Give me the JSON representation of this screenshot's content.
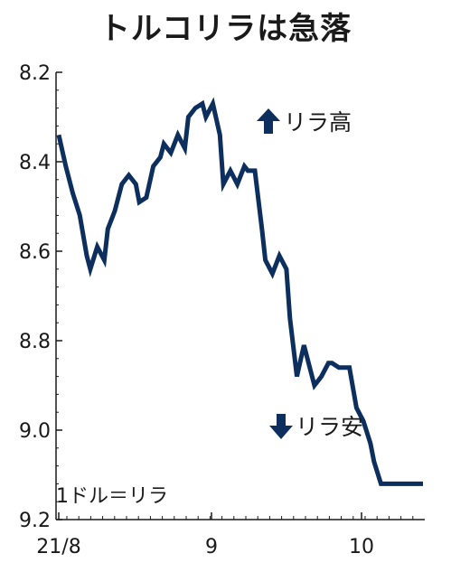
{
  "chart_data": {
    "type": "line",
    "title": "トルコリラは急落",
    "unit_label": "1ドル＝リラ",
    "y_axis": {
      "inverted": true,
      "ylim": [
        8.2,
        9.2
      ],
      "ticks": [
        "8.2",
        "8.4",
        "8.6",
        "8.8",
        "9.0",
        "9.2"
      ]
    },
    "x_axis": {
      "tick_labels": [
        "21/8",
        "9",
        "10"
      ]
    },
    "line_color": "#0d2f5e",
    "annotations": [
      {
        "text": "リラ高",
        "arrow": "up"
      },
      {
        "text": "リラ安",
        "arrow": "down"
      }
    ],
    "series": [
      {
        "x": [
          0,
          2,
          4,
          6,
          8,
          9,
          11,
          13,
          14,
          16,
          18,
          20,
          22,
          23,
          25,
          27,
          29,
          30,
          32,
          34,
          36,
          37,
          39,
          41,
          42,
          44,
          46,
          47,
          49,
          51,
          53,
          54,
          56,
          58,
          59,
          61,
          63,
          65,
          66,
          68,
          70,
          72,
          73,
          75,
          77,
          78,
          80,
          82,
          83,
          85,
          87,
          89,
          90,
          92,
          94,
          96,
          97,
          99,
          101,
          103,
          104
        ],
        "values": [
          8.34,
          8.41,
          8.47,
          8.52,
          8.61,
          8.64,
          8.59,
          8.62,
          8.55,
          8.51,
          8.45,
          8.43,
          8.45,
          8.49,
          8.48,
          8.41,
          8.39,
          8.36,
          8.38,
          8.34,
          8.37,
          8.3,
          8.28,
          8.27,
          8.3,
          8.27,
          8.34,
          8.45,
          8.42,
          8.45,
          8.41,
          8.42,
          8.42,
          8.55,
          8.62,
          8.65,
          8.61,
          8.64,
          8.75,
          8.88,
          8.81,
          8.87,
          8.9,
          8.88,
          8.85,
          8.85,
          8.86,
          8.86,
          8.86,
          8.95,
          8.98,
          9.03,
          9.07,
          9.12,
          9.12,
          9.12,
          9.12,
          9.12,
          9.12,
          9.12,
          9.12
        ]
      }
    ]
  }
}
